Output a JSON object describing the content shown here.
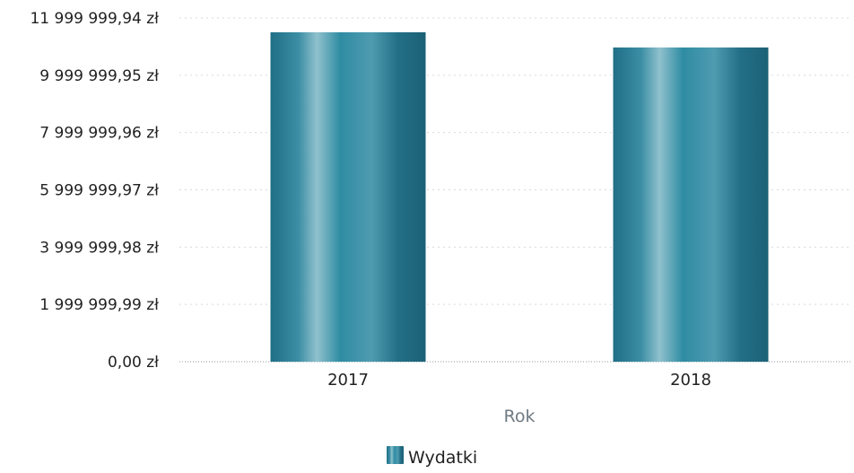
{
  "chart_data": {
    "type": "bar",
    "categories": [
      "2017",
      "2018"
    ],
    "series": [
      {
        "name": "Wydatki",
        "values": [
          11500000,
          10970000
        ]
      }
    ],
    "xlabel": "Rok",
    "ylabel": "",
    "ylim": [
      0,
      11999999.94
    ],
    "y_tick_values": [
      0,
      1999999.99,
      3999999.98,
      5999999.97,
      7999999.96,
      9999999.95,
      11999999.94
    ],
    "y_tick_labels": [
      "0,00 zł",
      "1 999 999,99 zł",
      "3 999 999,98 zł",
      "5 999 999,97 zł",
      "7 999 999,96 zł",
      "9 999 999,95 zł",
      "11 999 999,94 zł"
    ],
    "grid": true,
    "legend": {
      "position": "bottom-center",
      "entries": [
        "Wydatki"
      ]
    },
    "colors": {
      "bar_dark": "#1f6f86",
      "bar_mid": "#2f8ca3",
      "bar_light": "#8fc1cd"
    }
  }
}
